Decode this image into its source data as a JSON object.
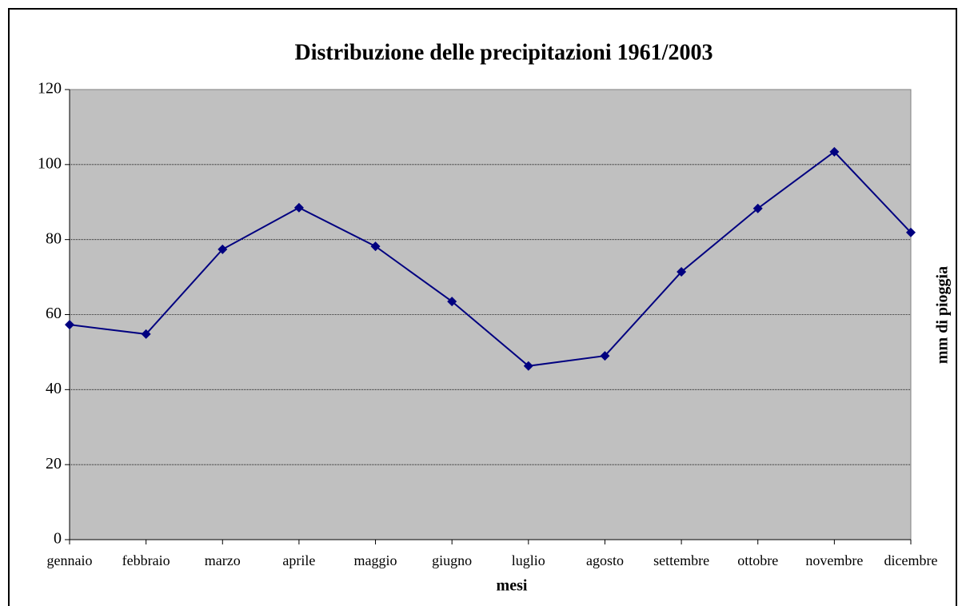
{
  "chart_data": {
    "type": "line",
    "title": "Distribuzione delle precipitazioni 1961/2003",
    "x_label": "mesi",
    "y_label": "mm di pioggia",
    "categories": [
      "gennaio",
      "febbraio",
      "marzo",
      "aprile",
      "maggio",
      "giugno",
      "luglio",
      "agosto",
      "settembre",
      "ottobre",
      "novembre",
      "dicembre"
    ],
    "series": [
      {
        "name": "mm di pioggia",
        "color": "#000080",
        "values": [
          57.3,
          54.8,
          77.4,
          88.5,
          78.2,
          63.5,
          46.3,
          49,
          71.4,
          88.3,
          103.4,
          81.9
        ]
      }
    ],
    "ylim": [
      0,
      120
    ],
    "yticks": [
      0,
      20,
      40,
      60,
      80,
      100,
      120
    ],
    "grid": true,
    "plot_background": "#c0c0c0"
  }
}
